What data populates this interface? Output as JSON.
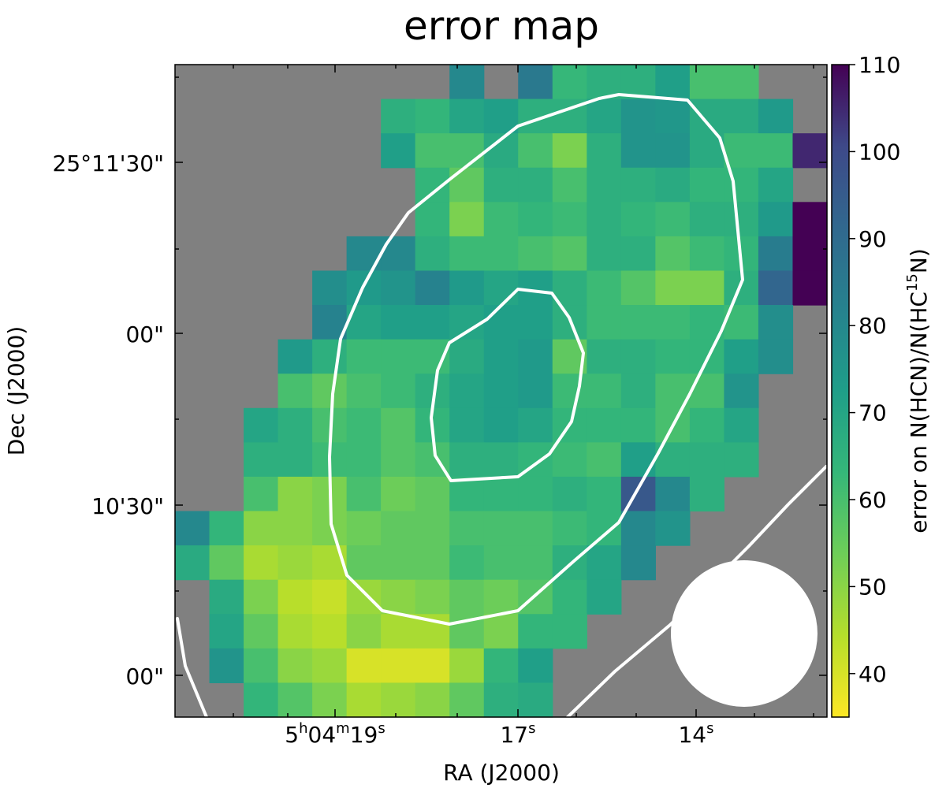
{
  "chart_data": {
    "type": "heatmap",
    "title": "error map",
    "xlabel": "RA (J2000)",
    "ylabel": "Dec (J2000)",
    "x_tick_labels": [
      {
        "pre": "5",
        "sup1": "h",
        "mid": "04",
        "sup2": "m",
        "main": "19",
        "sup3": "s"
      },
      {
        "main": "17",
        "sup3": "s"
      },
      {
        "main": "14",
        "sup3": "s"
      }
    ],
    "y_tick_labels": [
      "25°11'30\"",
      "00\"",
      "10'30\"",
      "00\""
    ],
    "colorbar": {
      "label_prefix": "error on N(HCN)/N(HC",
      "label_sup": "15",
      "label_suffix": "N)",
      "range": [
        35,
        110
      ],
      "ticks": [
        40,
        50,
        60,
        70,
        80,
        90,
        100,
        110
      ],
      "colormap": "viridis_r"
    },
    "nan_color": "#808080",
    "grid_cols": 19,
    "grid_rows": 19,
    "values": [
      [
        null,
        null,
        null,
        null,
        null,
        null,
        null,
        null,
        80,
        null,
        85,
        63,
        66,
        66,
        72,
        60,
        60,
        null,
        null
      ],
      [
        null,
        null,
        null,
        null,
        null,
        null,
        66,
        64,
        70,
        72,
        66,
        66,
        70,
        76,
        75,
        68,
        68,
        74,
        null
      ],
      [
        null,
        null,
        null,
        null,
        null,
        null,
        72,
        60,
        60,
        68,
        60,
        52,
        66,
        76,
        76,
        68,
        62,
        62,
        105
      ],
      [
        null,
        null,
        null,
        null,
        null,
        null,
        null,
        64,
        56,
        66,
        66,
        60,
        66,
        66,
        68,
        64,
        64,
        70,
        null
      ],
      [
        null,
        null,
        null,
        null,
        null,
        null,
        null,
        64,
        52,
        62,
        64,
        62,
        66,
        64,
        62,
        66,
        66,
        74,
        110
      ],
      [
        null,
        null,
        null,
        null,
        null,
        80,
        80,
        66,
        62,
        62,
        60,
        58,
        66,
        66,
        58,
        62,
        64,
        84,
        110
      ],
      [
        null,
        null,
        null,
        null,
        78,
        74,
        76,
        82,
        74,
        70,
        72,
        66,
        62,
        58,
        52,
        52,
        66,
        92,
        110
      ],
      [
        null,
        null,
        null,
        null,
        82,
        70,
        72,
        72,
        70,
        72,
        72,
        66,
        62,
        62,
        62,
        64,
        62,
        78,
        null
      ],
      [
        null,
        null,
        null,
        74,
        66,
        62,
        62,
        62,
        68,
        72,
        74,
        56,
        66,
        66,
        64,
        64,
        72,
        78,
        null
      ],
      [
        null,
        null,
        null,
        60,
        56,
        60,
        62,
        66,
        70,
        72,
        74,
        62,
        62,
        66,
        60,
        60,
        76,
        null,
        null
      ],
      [
        null,
        null,
        70,
        66,
        60,
        62,
        58,
        64,
        70,
        72,
        70,
        64,
        64,
        64,
        60,
        64,
        70,
        null,
        null
      ],
      [
        null,
        null,
        66,
        66,
        62,
        62,
        58,
        60,
        66,
        66,
        64,
        62,
        60,
        72,
        66,
        66,
        66,
        null,
        null
      ],
      [
        null,
        null,
        60,
        50,
        52,
        60,
        54,
        56,
        64,
        64,
        64,
        66,
        64,
        96,
        80,
        66,
        null,
        null,
        null
      ],
      [
        80,
        64,
        50,
        50,
        52,
        54,
        56,
        56,
        60,
        60,
        60,
        62,
        64,
        80,
        76,
        null,
        null,
        null,
        null
      ],
      [
        68,
        56,
        46,
        48,
        46,
        56,
        56,
        56,
        62,
        60,
        60,
        66,
        70,
        80,
        null,
        null,
        null,
        null,
        null
      ],
      [
        null,
        68,
        52,
        44,
        42,
        48,
        50,
        52,
        56,
        54,
        58,
        64,
        70,
        null,
        null,
        null,
        null,
        null,
        null
      ],
      [
        null,
        70,
        56,
        46,
        44,
        50,
        46,
        46,
        56,
        52,
        64,
        64,
        null,
        null,
        null,
        null,
        null,
        null,
        null
      ],
      [
        null,
        76,
        60,
        50,
        48,
        40,
        40,
        40,
        48,
        64,
        72,
        null,
        null,
        null,
        null,
        null,
        null,
        null,
        null
      ],
      [
        null,
        null,
        64,
        58,
        52,
        46,
        48,
        50,
        56,
        66,
        68,
        null,
        null,
        null,
        null,
        null,
        null,
        null,
        null
      ]
    ]
  }
}
